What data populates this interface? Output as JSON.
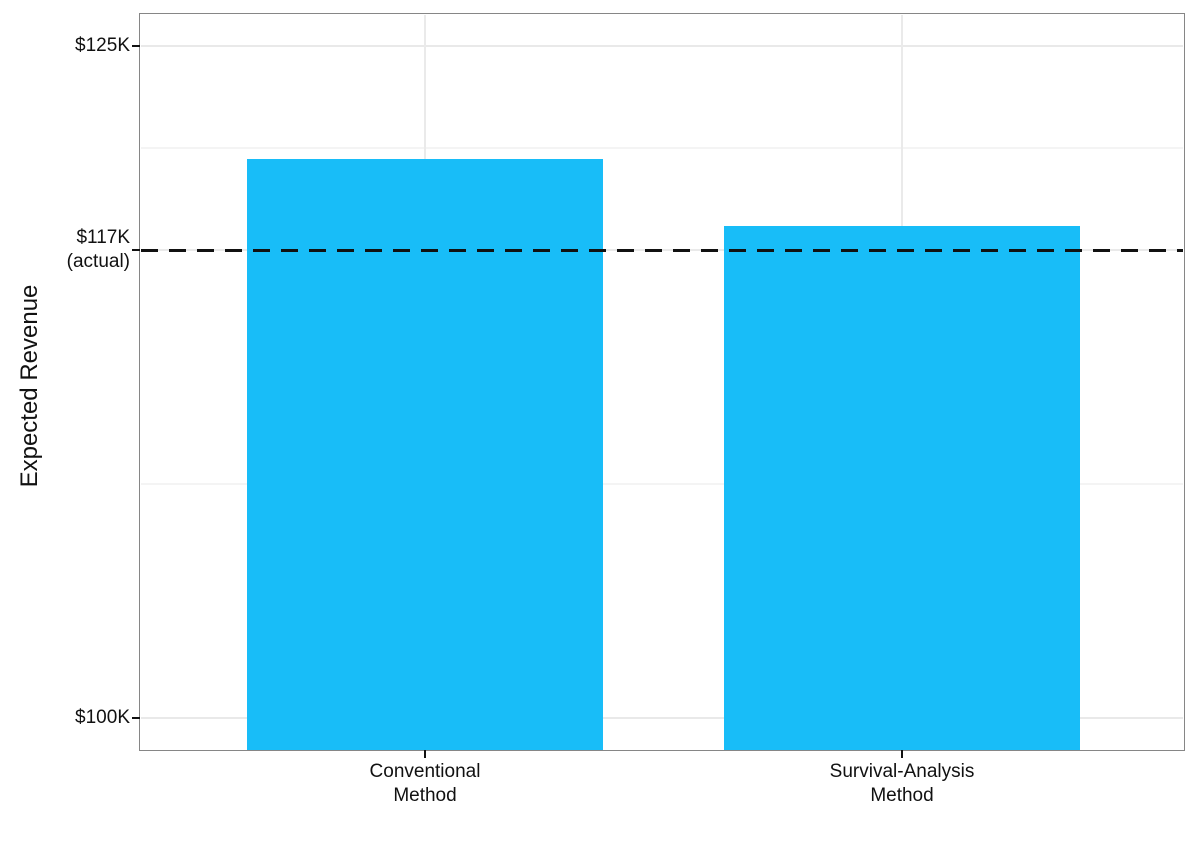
{
  "chart_data": {
    "type": "bar",
    "categories": [
      "Conventional Method",
      "Survival-Analysis Method"
    ],
    "values_k": [
      120.8,
      118.3
    ],
    "unit": "USD thousands",
    "ylabel": "Expected Revenue",
    "xlabel": "",
    "ylim_k": [
      98.8,
      126.2
    ],
    "grid": true,
    "legend": false,
    "bar_color": "#18bdf8",
    "reference_line": {
      "value_k": 117.4,
      "style": "dashed",
      "color": "#111111",
      "label_lines": [
        "$117K",
        "(actual)"
      ]
    },
    "y_ticks": [
      {
        "value_k": 125,
        "lines": [
          "$125K"
        ]
      },
      {
        "value_k": 117.4,
        "lines": [
          "$117K",
          "(actual)"
        ]
      },
      {
        "value_k": 100,
        "lines": [
          "$100K"
        ]
      }
    ],
    "y_minor_gridlines_k": [
      121.2,
      108.7
    ],
    "x_tick_labels": [
      [
        "Conventional",
        "Method"
      ],
      [
        "Survival-Analysis",
        "Method"
      ]
    ]
  }
}
